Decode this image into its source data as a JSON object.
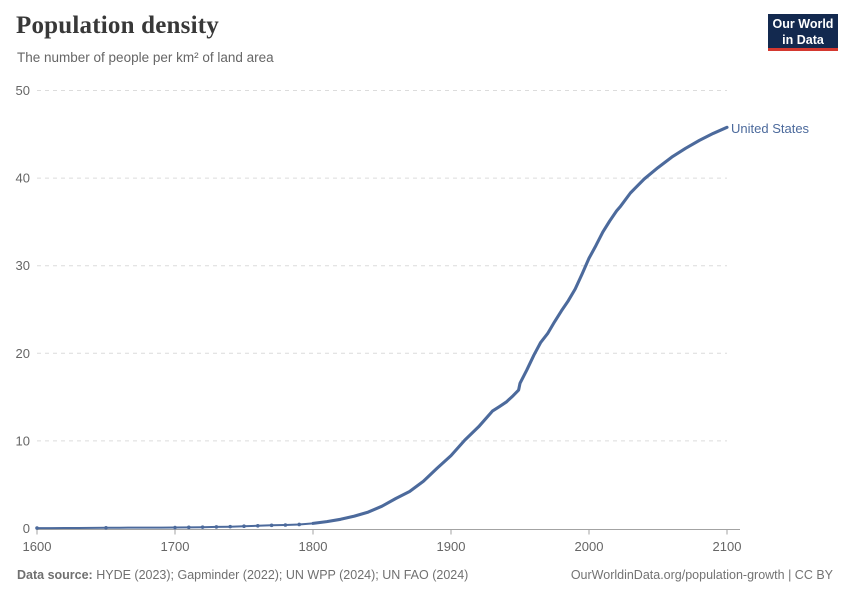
{
  "header": {
    "title": "Population density",
    "subtitle": "The number of people per km² of land area",
    "logo": {
      "line1": "Our World",
      "line2": "in Data"
    }
  },
  "footer": {
    "source_label": "Data source:",
    "source_text": " HYDE (2023); Gapminder (2022); UN WPP (2024); UN FAO (2024)",
    "attribution": "OurWorldinData.org/population-growth | CC BY"
  },
  "colors": {
    "series": "#4c6a9c",
    "logo_bg": "#13294f",
    "logo_accent": "#d4382f",
    "gridline": "#dcdcdc",
    "axis": "#a3a3a3",
    "tick_label": "#666666"
  },
  "chart_data": {
    "type": "line",
    "title": "Population density",
    "subtitle": "The number of people per km² of land area",
    "xlabel": "",
    "ylabel": "",
    "legend_position": "end-of-line-label",
    "x": {
      "ticks": [
        1600,
        1700,
        1800,
        1900,
        2000,
        2100
      ],
      "range": [
        1600,
        2100
      ]
    },
    "y": {
      "ticks": [
        0,
        10,
        20,
        30,
        40,
        50
      ],
      "range": [
        0,
        50
      ],
      "gridlines": true,
      "grid_style": "dashed"
    },
    "series": [
      {
        "name": "United States",
        "color": "#4c6a9c",
        "marker_years": [
          1600,
          1650,
          1700,
          1710,
          1720,
          1730,
          1740,
          1750,
          1760,
          1770,
          1780,
          1790
        ],
        "points": [
          [
            1600,
            0.05
          ],
          [
            1610,
            0.05
          ],
          [
            1620,
            0.06
          ],
          [
            1630,
            0.06
          ],
          [
            1640,
            0.07
          ],
          [
            1650,
            0.08
          ],
          [
            1660,
            0.09
          ],
          [
            1670,
            0.1
          ],
          [
            1680,
            0.1
          ],
          [
            1690,
            0.1
          ],
          [
            1700,
            0.11
          ],
          [
            1710,
            0.13
          ],
          [
            1720,
            0.15
          ],
          [
            1730,
            0.18
          ],
          [
            1740,
            0.21
          ],
          [
            1750,
            0.26
          ],
          [
            1760,
            0.31
          ],
          [
            1770,
            0.36
          ],
          [
            1780,
            0.4
          ],
          [
            1790,
            0.46
          ],
          [
            1800,
            0.58
          ],
          [
            1810,
            0.79
          ],
          [
            1820,
            1.05
          ],
          [
            1830,
            1.41
          ],
          [
            1840,
            1.87
          ],
          [
            1850,
            2.54
          ],
          [
            1860,
            3.43
          ],
          [
            1870,
            4.22
          ],
          [
            1880,
            5.4
          ],
          [
            1890,
            6.89
          ],
          [
            1900,
            8.32
          ],
          [
            1910,
            10.09
          ],
          [
            1920,
            11.61
          ],
          [
            1930,
            13.4
          ],
          [
            1935,
            13.9
          ],
          [
            1940,
            14.43
          ],
          [
            1945,
            15.16
          ],
          [
            1949,
            15.8
          ],
          [
            1950,
            16.57
          ],
          [
            1955,
            18.12
          ],
          [
            1960,
            19.77
          ],
          [
            1965,
            21.24
          ],
          [
            1970,
            22.25
          ],
          [
            1975,
            23.58
          ],
          [
            1980,
            24.84
          ],
          [
            1985,
            26.01
          ],
          [
            1990,
            27.34
          ],
          [
            1995,
            29.05
          ],
          [
            2000,
            30.84
          ],
          [
            2005,
            32.29
          ],
          [
            2010,
            33.83
          ],
          [
            2015,
            35.1
          ],
          [
            2020,
            36.26
          ],
          [
            2023,
            36.8
          ],
          [
            2030,
            38.3
          ],
          [
            2040,
            39.9
          ],
          [
            2050,
            41.2
          ],
          [
            2060,
            42.4
          ],
          [
            2070,
            43.4
          ],
          [
            2080,
            44.3
          ],
          [
            2090,
            45.1
          ],
          [
            2100,
            45.8
          ]
        ]
      }
    ]
  }
}
